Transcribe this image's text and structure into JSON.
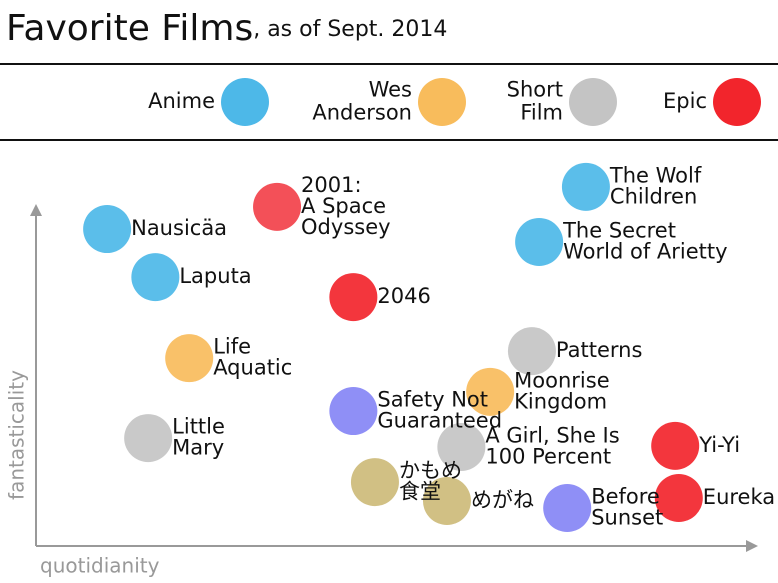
{
  "chart_data": {
    "type": "scatter",
    "title": "Favorite Films",
    "subtitle": ", as of Sept. 2014",
    "x_label": "quotidianity",
    "y_label": "fantasticality",
    "xlim": [
      0,
      100
    ],
    "ylim": [
      0,
      100
    ],
    "legend": [
      {
        "name": [
          "Anime"
        ],
        "color": "#4db8e8"
      },
      {
        "name": [
          "Wes",
          "Anderson"
        ],
        "color": "#f8bc5c"
      },
      {
        "name": [
          "Short",
          "Film"
        ],
        "color": "#c4c4c4"
      },
      {
        "name": [
          "Epic"
        ],
        "color": "#f2252c"
      }
    ],
    "points": [
      {
        "label": [
          "Nausicäa"
        ],
        "x": 9.6,
        "y": 85.4,
        "color": "#4db8e8"
      },
      {
        "label": [
          "Laputa"
        ],
        "x": 16.3,
        "y": 72.4,
        "color": "#4db8e8"
      },
      {
        "label": [
          "2001:",
          "A Space",
          "Odyssey"
        ],
        "x": 33.2,
        "y": 91.4,
        "color": "#f2414a"
      },
      {
        "label": [
          "2046"
        ],
        "x": 43.8,
        "y": 67.0,
        "color": "#f2252c"
      },
      {
        "label": [
          "The Wolf",
          "Children"
        ],
        "x": 76.1,
        "y": 96.8,
        "color": "#4db8e8"
      },
      {
        "label": [
          "The Secret",
          "World of Arietty"
        ],
        "x": 69.6,
        "y": 81.9,
        "color": "#4db8e8"
      },
      {
        "label": [
          "Life",
          "Aquatic"
        ],
        "x": 21.0,
        "y": 50.5,
        "color": "#f8bc5c"
      },
      {
        "label": [
          "Patterns"
        ],
        "x": 68.6,
        "y": 52.4,
        "color": "#c4c4c4"
      },
      {
        "label": [
          "Moonrise",
          "Kingdom"
        ],
        "x": 62.8,
        "y": 41.4,
        "color": "#f8bc5c"
      },
      {
        "label": [
          "Safety Not",
          "Guaranteed"
        ],
        "x": 43.8,
        "y": 36.2,
        "color": "#8585f5"
      },
      {
        "label": [
          "A Girl, She Is",
          "100 Percent"
        ],
        "x": 58.8,
        "y": 26.5,
        "color": "#c4c4c4"
      },
      {
        "label": [
          "Little",
          "Mary"
        ],
        "x": 15.3,
        "y": 28.9,
        "color": "#c4c4c4"
      },
      {
        "label": [
          "Yi-Yi"
        ],
        "x": 88.5,
        "y": 26.8,
        "color": "#f2252c"
      },
      {
        "label": [
          "Eureka"
        ],
        "x": 89.0,
        "y": 12.7,
        "color": "#f2252c"
      },
      {
        "label": [
          "かもめ",
          "食堂"
        ],
        "x": 46.8,
        "y": 17.0,
        "color": "#cdbb7a"
      },
      {
        "label": [
          "めがね"
        ],
        "x": 56.8,
        "y": 11.9,
        "color": "#cdbb7a"
      },
      {
        "label": [
          "Before",
          "Sunset"
        ],
        "x": 73.5,
        "y": 10.0,
        "color": "#8585f5"
      }
    ]
  }
}
